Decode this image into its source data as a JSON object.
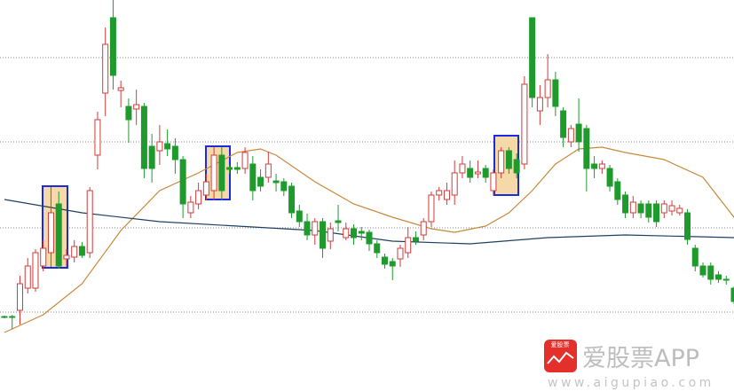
{
  "chart_data": {
    "type": "candlestick",
    "ylim": [
      0,
      441
    ],
    "up_color": "#d43a3a",
    "down_color": "#1e9b2c",
    "candles": [
      [
        84,
        85,
        82,
        83
      ],
      [
        84,
        86,
        70,
        83
      ],
      [
        91,
        130,
        75,
        121
      ],
      [
        116,
        150,
        110,
        141
      ],
      [
        116,
        160,
        112,
        156
      ],
      [
        141,
        170,
        135,
        161
      ],
      [
        156,
        230,
        140,
        201
      ],
      [
        211,
        225,
        138,
        141
      ],
      [
        149,
        160,
        140,
        153
      ],
      [
        151,
        170,
        145,
        163
      ],
      [
        163,
        168,
        150,
        153
      ],
      [
        156,
        230,
        150,
        226
      ],
      [
        266,
        315,
        250,
        306
      ],
      [
        336,
        410,
        310,
        391
      ],
      [
        421,
        441,
        340,
        356
      ],
      [
        339,
        350,
        320,
        342
      ],
      [
        321,
        330,
        280,
        306
      ],
      [
        318,
        340,
        300,
        323
      ],
      [
        321,
        325,
        240,
        251
      ],
      [
        276,
        290,
        235,
        251
      ],
      [
        271,
        300,
        255,
        281
      ],
      [
        279,
        295,
        265,
        273
      ],
      [
        276,
        285,
        245,
        261
      ],
      [
        261,
        265,
        195,
        211
      ],
      [
        201,
        220,
        195,
        213
      ],
      [
        211,
        235,
        205,
        226
      ],
      [
        221,
        245,
        215,
        236
      ],
      [
        226,
        275,
        215,
        266
      ],
      [
        266,
        275,
        215,
        226
      ],
      [
        252,
        255,
        245,
        250
      ],
      [
        252,
        258,
        245,
        250
      ],
      [
        251,
        275,
        245,
        269
      ],
      [
        256,
        265,
        215,
        226
      ],
      [
        241,
        250,
        225,
        231
      ],
      [
        241,
        270,
        235,
        256
      ],
      [
        237,
        245,
        225,
        235
      ],
      [
        236,
        240,
        220,
        226
      ],
      [
        231,
        235,
        195,
        201
      ],
      [
        203,
        210,
        185,
        191
      ],
      [
        191,
        200,
        170,
        176
      ],
      [
        176,
        195,
        165,
        191
      ],
      [
        191,
        195,
        150,
        161
      ],
      [
        169,
        190,
        160,
        183
      ],
      [
        192,
        210,
        180,
        190
      ],
      [
        173,
        190,
        170,
        183
      ],
      [
        183,
        188,
        165,
        173
      ],
      [
        180,
        185,
        170,
        178
      ],
      [
        179,
        182,
        158,
        166
      ],
      [
        166,
        170,
        150,
        156
      ],
      [
        151,
        155,
        138,
        143
      ],
      [
        146,
        150,
        125,
        141
      ],
      [
        149,
        165,
        140,
        161
      ],
      [
        156,
        185,
        150,
        173
      ],
      [
        173,
        180,
        165,
        169
      ],
      [
        176,
        195,
        170,
        191
      ],
      [
        191,
        225,
        185,
        221
      ],
      [
        221,
        230,
        215,
        226
      ],
      [
        216,
        235,
        210,
        226
      ],
      [
        221,
        260,
        210,
        246
      ],
      [
        246,
        265,
        240,
        256
      ],
      [
        251,
        260,
        235,
        241
      ],
      [
        245,
        260,
        240,
        247
      ],
      [
        251,
        255,
        235,
        241
      ],
      [
        226,
        250,
        220,
        246
      ],
      [
        246,
        275,
        240,
        271
      ],
      [
        271,
        275,
        245,
        251
      ],
      [
        261,
        268,
        240,
        246
      ],
      [
        256,
        355,
        250,
        346
      ],
      [
        421,
        421,
        320,
        331
      ],
      [
        316,
        345,
        300,
        331
      ],
      [
        331,
        380,
        320,
        351
      ],
      [
        351,
        360,
        310,
        321
      ],
      [
        316,
        320,
        275,
        286
      ],
      [
        281,
        300,
        275,
        296
      ],
      [
        301,
        330,
        270,
        281
      ],
      [
        296,
        300,
        225,
        251
      ],
      [
        256,
        265,
        240,
        251
      ],
      [
        251,
        260,
        245,
        256
      ],
      [
        251,
        255,
        225,
        231
      ],
      [
        236,
        240,
        210,
        216
      ],
      [
        221,
        225,
        195,
        201
      ],
      [
        201,
        220,
        195,
        213
      ],
      [
        211,
        215,
        195,
        201
      ],
      [
        211,
        215,
        190,
        196
      ],
      [
        211,
        215,
        185,
        191
      ],
      [
        201,
        215,
        195,
        211
      ],
      [
        203,
        215,
        198,
        209
      ],
      [
        201,
        210,
        198,
        206
      ],
      [
        201,
        205,
        165,
        171
      ],
      [
        161,
        165,
        135,
        141
      ],
      [
        141,
        145,
        128,
        131
      ],
      [
        141,
        145,
        120,
        126
      ],
      [
        131,
        135,
        122,
        126
      ],
      [
        126,
        130,
        120,
        125
      ],
      [
        116,
        118,
        98,
        101
      ]
    ],
    "lines": [
      {
        "color": "#c8883a",
        "x": [
          0,
          5,
          10,
          15,
          20,
          25,
          30,
          33,
          35,
          40,
          45,
          50,
          55,
          58,
          62,
          65,
          68,
          71,
          74,
          77,
          80,
          85,
          90,
          94
        ],
        "values": [
          66,
          86,
          121,
          181,
          226,
          246,
          269,
          273,
          266,
          236,
          211,
          196,
          183,
          179,
          186,
          201,
          226,
          256,
          273,
          275,
          269,
          261,
          241,
          196
        ]
      },
      {
        "color": "#1f4060",
        "x": [
          0,
          10,
          20,
          30,
          40,
          50,
          60,
          70,
          80,
          94
        ],
        "values": [
          216,
          201,
          191,
          186,
          181,
          169,
          166,
          173,
          176,
          173
        ]
      }
    ]
  },
  "watermark": {
    "badge": "爱股票",
    "name": "爱股票APP",
    "url": "www.aigupiao.com"
  }
}
